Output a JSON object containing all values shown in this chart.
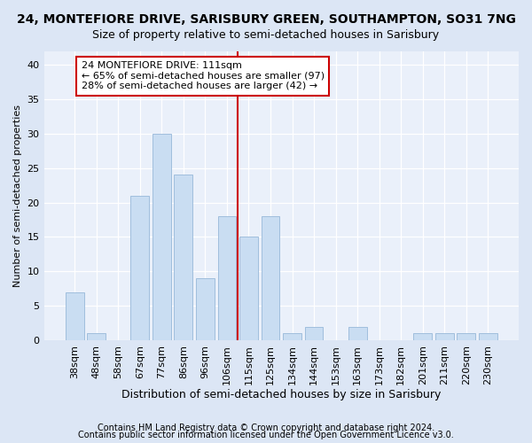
{
  "title1": "24, MONTEFIORE DRIVE, SARISBURY GREEN, SOUTHAMPTON, SO31 7NG",
  "title2": "Size of property relative to semi-detached houses in Sarisbury",
  "xlabel": "Distribution of semi-detached houses by size in Sarisbury",
  "ylabel": "Number of semi-detached properties",
  "categories": [
    "38sqm",
    "48sqm",
    "58sqm",
    "67sqm",
    "77sqm",
    "86sqm",
    "96sqm",
    "106sqm",
    "115sqm",
    "125sqm",
    "134sqm",
    "144sqm",
    "153sqm",
    "163sqm",
    "173sqm",
    "182sqm",
    "201sqm",
    "211sqm",
    "220sqm",
    "230sqm"
  ],
  "values": [
    7,
    1,
    0,
    21,
    30,
    24,
    9,
    18,
    15,
    18,
    1,
    2,
    0,
    2,
    0,
    0,
    1,
    1,
    1,
    1
  ],
  "bar_color": "#c9ddf2",
  "bar_edge_color": "#a0bedd",
  "vline_color": "#cc0000",
  "annotation_text": "24 MONTEFIORE DRIVE: 111sqm\n← 65% of semi-detached houses are smaller (97)\n28% of semi-detached houses are larger (42) →",
  "annotation_box_color": "#ffffff",
  "annotation_box_edge": "#cc0000",
  "footer1": "Contains HM Land Registry data © Crown copyright and database right 2024.",
  "footer2": "Contains public sector information licensed under the Open Government Licence v3.0.",
  "bg_color": "#dce6f5",
  "plot_bg_color": "#eaf0fa",
  "grid_color": "#ffffff",
  "ylim": [
    0,
    42
  ],
  "yticks": [
    0,
    5,
    10,
    15,
    20,
    25,
    30,
    35,
    40
  ],
  "title1_fontsize": 10,
  "title2_fontsize": 9,
  "xlabel_fontsize": 9,
  "ylabel_fontsize": 8,
  "tick_fontsize": 8,
  "footer_fontsize": 7,
  "annotation_fontsize": 8
}
